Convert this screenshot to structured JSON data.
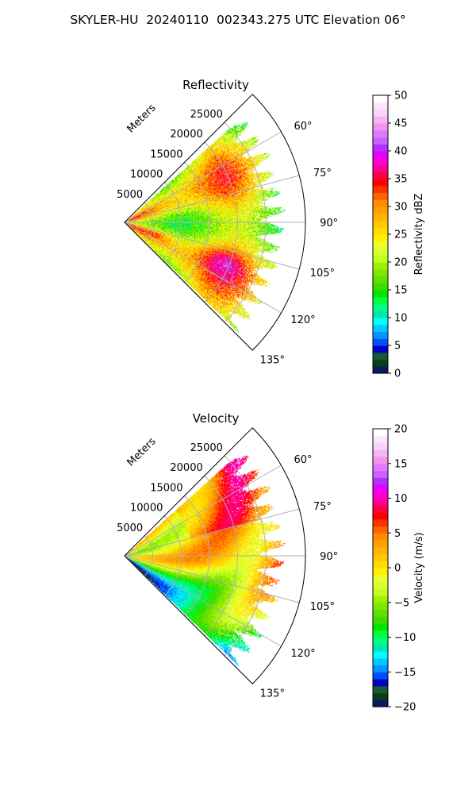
{
  "figure": {
    "title": "SKYLER-HU  20240110  002343.275 UTC Elevation 06°"
  },
  "chart_data": [
    {
      "type": "heatmap",
      "projection": "polar-sector",
      "title": "Reflectivity",
      "radial_axis_label": "Meters",
      "radial_ticks": [
        5000,
        10000,
        15000,
        20000,
        25000
      ],
      "radial_tick_labels": [
        "5000",
        "10000",
        "15000",
        "20000",
        "25000"
      ],
      "rlim": [
        0,
        32000
      ],
      "theta_range_deg": [
        45,
        135
      ],
      "theta_ticks": [
        60,
        75,
        90,
        105,
        120,
        135
      ],
      "theta_tick_labels": [
        "60°",
        "75°",
        "90°",
        "105°",
        "120°",
        "135°"
      ],
      "grid": true,
      "field": "reflectivity",
      "colorbar": {
        "label": "Reflectivity dBZ",
        "vmin": 0,
        "vmax": 50,
        "ticks": [
          0,
          5,
          10,
          15,
          20,
          25,
          30,
          35,
          40,
          45,
          50
        ],
        "tick_labels": [
          "0",
          "5",
          "10",
          "15",
          "20",
          "25",
          "30",
          "35",
          "40",
          "45",
          "50"
        ],
        "colors": [
          "#0a1a5c",
          "#0a3d1e",
          "#145a32",
          "#0000c8",
          "#0050ff",
          "#0096ff",
          "#00c8ff",
          "#00ffff",
          "#00e6b0",
          "#00ff80",
          "#00ff40",
          "#00e600",
          "#40dc00",
          "#60e000",
          "#80e600",
          "#a0f000",
          "#c0ff20",
          "#d8ff30",
          "#eaff30",
          "#fff000",
          "#ffdc00",
          "#ffc800",
          "#ffb400",
          "#ffa000",
          "#ff8c00",
          "#ff6400",
          "#ff3200",
          "#ff0000",
          "#ff0046",
          "#ff0096",
          "#ff00d2",
          "#e600ff",
          "#b432ff",
          "#c864ff",
          "#e678ff",
          "#f096f0",
          "#f5b4f5",
          "#fad2fa",
          "#fde6fd",
          "#ffffff"
        ]
      }
    },
    {
      "type": "heatmap",
      "projection": "polar-sector",
      "title": "Velocity",
      "radial_axis_label": "Meters",
      "radial_ticks": [
        5000,
        10000,
        15000,
        20000,
        25000
      ],
      "radial_tick_labels": [
        "5000",
        "10000",
        "15000",
        "20000",
        "25000"
      ],
      "rlim": [
        0,
        32000
      ],
      "theta_range_deg": [
        45,
        135
      ],
      "theta_ticks": [
        60,
        75,
        90,
        105,
        120,
        135
      ],
      "theta_tick_labels": [
        "60°",
        "75°",
        "90°",
        "105°",
        "120°",
        "135°"
      ],
      "grid": true,
      "field": "velocity",
      "colorbar": {
        "label": "Velocity (m/s)",
        "vmin": -20,
        "vmax": 20,
        "ticks": [
          -20,
          -15,
          -10,
          -5,
          0,
          5,
          10,
          15,
          20
        ],
        "tick_labels": [
          "−20",
          "−15",
          "−10",
          "−5",
          "0",
          "5",
          "10",
          "15",
          "20"
        ],
        "colors": [
          "#0a1a5c",
          "#0a3d1e",
          "#145a32",
          "#0000c8",
          "#0050ff",
          "#0096ff",
          "#00c8ff",
          "#00ffff",
          "#00e6b0",
          "#00ff80",
          "#00ff40",
          "#00e600",
          "#40dc00",
          "#60e000",
          "#80e600",
          "#a0f000",
          "#c0ff20",
          "#d8ff30",
          "#eaff30",
          "#fff000",
          "#ffdc00",
          "#ffc800",
          "#ffb400",
          "#ffa000",
          "#ff8c00",
          "#ff6400",
          "#ff3200",
          "#ff0000",
          "#ff0046",
          "#ff0096",
          "#ff00d2",
          "#e600ff",
          "#b432ff",
          "#c864ff",
          "#e678ff",
          "#f096f0",
          "#f5b4f5",
          "#fad2fa",
          "#fde6fd",
          "#ffffff"
        ]
      }
    }
  ]
}
